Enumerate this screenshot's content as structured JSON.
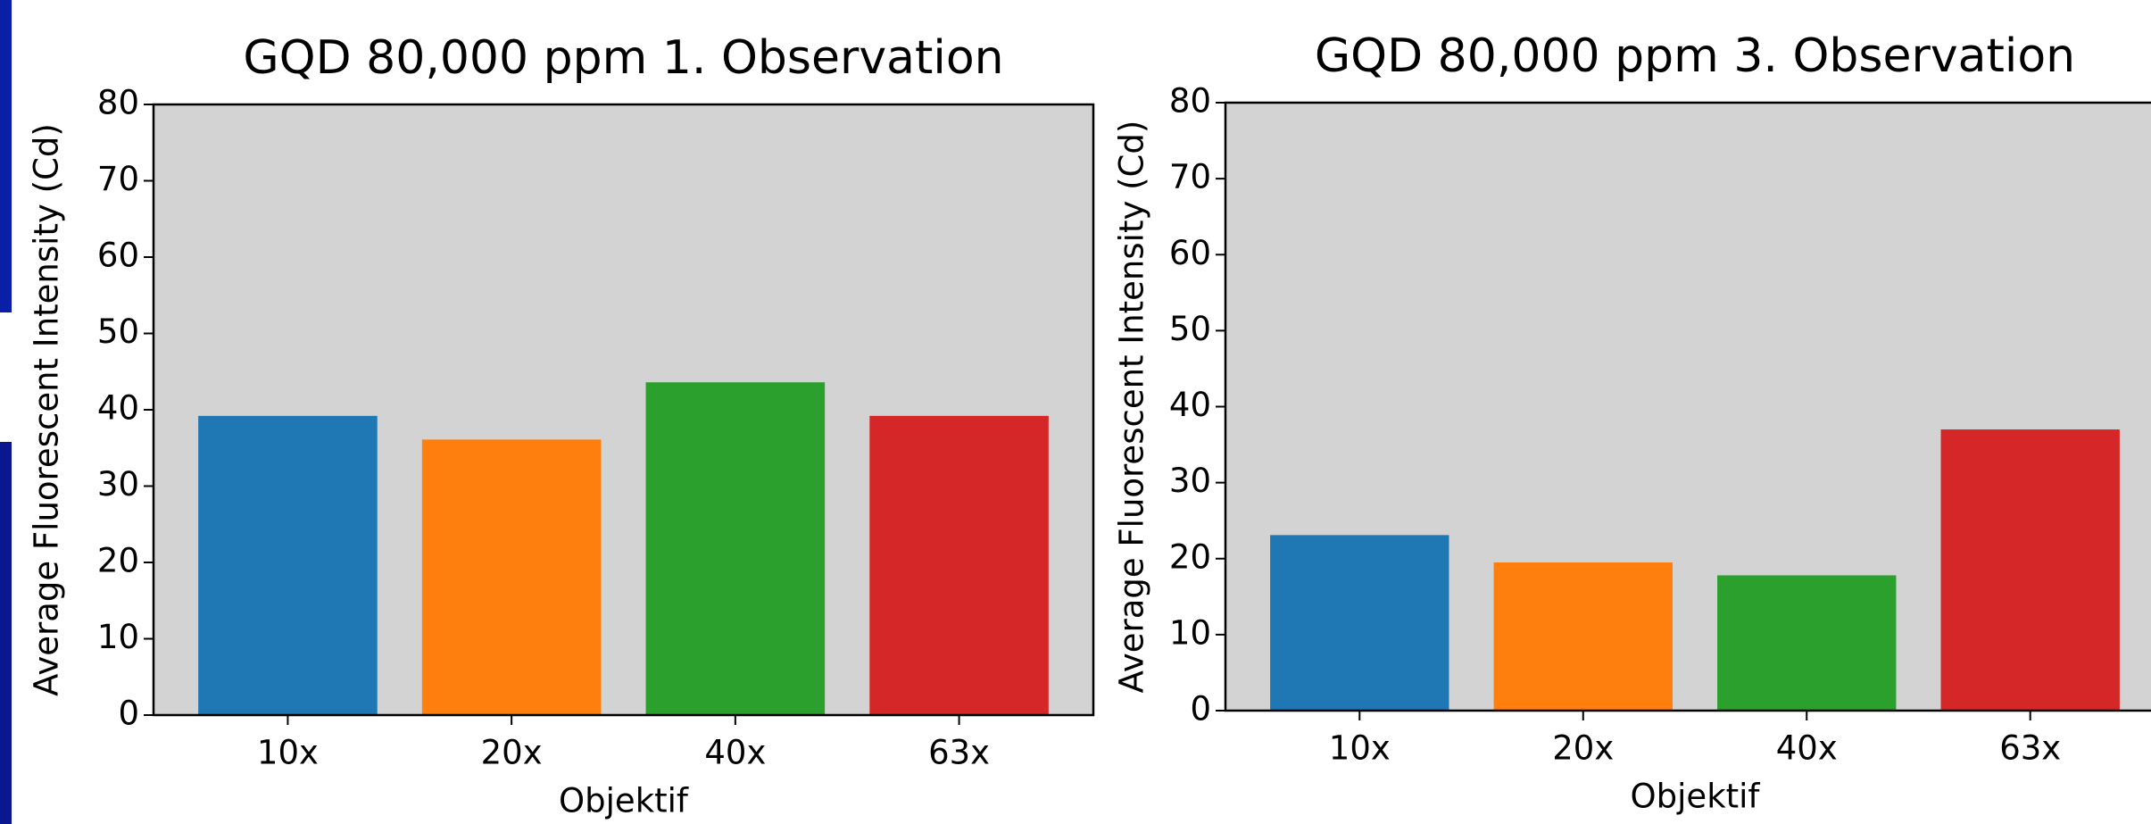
{
  "chart_data": [
    {
      "type": "bar",
      "title": "GQD 80,000 ppm 1. Observation",
      "x_label": "Objektif",
      "y_label": "Average Fluorescent Intensity (Cd)",
      "categories": [
        "10x",
        "20x",
        "40x",
        "63x"
      ],
      "values": [
        39.2,
        36.1,
        43.6,
        39.2
      ],
      "colors": [
        "#1f77b4",
        "#ff7f0e",
        "#2ca02c",
        "#d62728"
      ],
      "ylim": [
        0,
        80
      ],
      "yticks": [
        0,
        10,
        20,
        30,
        40,
        50,
        60,
        70,
        80
      ]
    },
    {
      "type": "bar",
      "title": "GQD 80,000 ppm 3. Observation",
      "x_label": "Objektif",
      "y_label": "Average Fluorescent Intensity (Cd)",
      "categories": [
        "10x",
        "20x",
        "40x",
        "63x"
      ],
      "values": [
        23.1,
        19.5,
        17.8,
        37.0
      ],
      "colors": [
        "#1f77b4",
        "#ff7f0e",
        "#2ca02c",
        "#d62728"
      ],
      "ylim": [
        0,
        80
      ],
      "yticks": [
        0,
        10,
        20,
        30,
        40,
        50,
        60,
        70,
        80
      ]
    }
  ]
}
